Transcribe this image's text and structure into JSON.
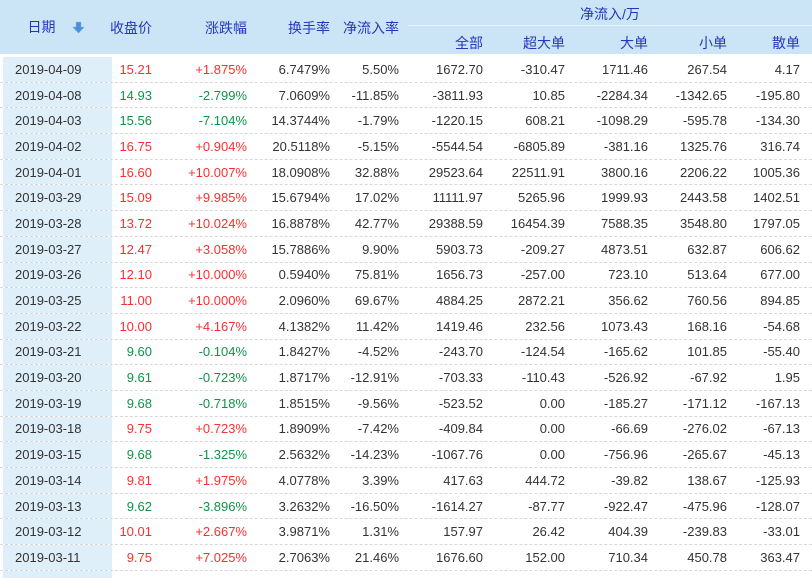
{
  "header": {
    "date_label": "日期",
    "sort_icon": "arrow-down-sort-descending",
    "close_label": "收盘价",
    "change_label": "涨跌幅",
    "turnover_label": "换手率",
    "inflow_rate_label": "净流入率",
    "inflow_group_label": "净流入/万",
    "sub_all": "全部",
    "sub_xlarge": "超大单",
    "sub_large": "大单",
    "sub_small": "小单",
    "sub_retail": "散单"
  },
  "colors": {
    "up": "#fb2f2f",
    "down": "#0f9447",
    "header_bg": "#cbe5f7",
    "header_text": "#2637bb",
    "date_col_bg": "#dfeffa",
    "row_divider": "#d8d8d8",
    "sort_arrow": "#4a90d9",
    "body_text": "#333333"
  },
  "rows": [
    {
      "date": "2019-04-09",
      "close": "15.21",
      "change": "+1.875%",
      "turnover": "6.7479%",
      "inflow_rate": "5.50%",
      "all": "1672.70",
      "xlarge": "-310.47",
      "large": "1711.46",
      "small": "267.54",
      "retail": "4.17",
      "trend": "up"
    },
    {
      "date": "2019-04-08",
      "close": "14.93",
      "change": "-2.799%",
      "turnover": "7.0609%",
      "inflow_rate": "-11.85%",
      "all": "-3811.93",
      "xlarge": "10.85",
      "large": "-2284.34",
      "small": "-1342.65",
      "retail": "-195.80",
      "trend": "down"
    },
    {
      "date": "2019-04-03",
      "close": "15.56",
      "change": "-7.104%",
      "turnover": "14.3744%",
      "inflow_rate": "-1.79%",
      "all": "-1220.15",
      "xlarge": "608.21",
      "large": "-1098.29",
      "small": "-595.78",
      "retail": "-134.30",
      "trend": "down"
    },
    {
      "date": "2019-04-02",
      "close": "16.75",
      "change": "+0.904%",
      "turnover": "20.5118%",
      "inflow_rate": "-5.15%",
      "all": "-5544.54",
      "xlarge": "-6805.89",
      "large": "-381.16",
      "small": "1325.76",
      "retail": "316.74",
      "trend": "up"
    },
    {
      "date": "2019-04-01",
      "close": "16.60",
      "change": "+10.007%",
      "turnover": "18.0908%",
      "inflow_rate": "32.88%",
      "all": "29523.64",
      "xlarge": "22511.91",
      "large": "3800.16",
      "small": "2206.22",
      "retail": "1005.36",
      "trend": "up"
    },
    {
      "date": "2019-03-29",
      "close": "15.09",
      "change": "+9.985%",
      "turnover": "15.6794%",
      "inflow_rate": "17.02%",
      "all": "11111.97",
      "xlarge": "5265.96",
      "large": "1999.93",
      "small": "2443.58",
      "retail": "1402.51",
      "trend": "up"
    },
    {
      "date": "2019-03-28",
      "close": "13.72",
      "change": "+10.024%",
      "turnover": "16.8878%",
      "inflow_rate": "42.77%",
      "all": "29388.59",
      "xlarge": "16454.39",
      "large": "7588.35",
      "small": "3548.80",
      "retail": "1797.05",
      "trend": "up"
    },
    {
      "date": "2019-03-27",
      "close": "12.47",
      "change": "+3.058%",
      "turnover": "15.7886%",
      "inflow_rate": "9.90%",
      "all": "5903.73",
      "xlarge": "-209.27",
      "large": "4873.51",
      "small": "632.87",
      "retail": "606.62",
      "trend": "up"
    },
    {
      "date": "2019-03-26",
      "close": "12.10",
      "change": "+10.000%",
      "turnover": "0.5940%",
      "inflow_rate": "75.81%",
      "all": "1656.73",
      "xlarge": "-257.00",
      "large": "723.10",
      "small": "513.64",
      "retail": "677.00",
      "trend": "up"
    },
    {
      "date": "2019-03-25",
      "close": "11.00",
      "change": "+10.000%",
      "turnover": "2.0960%",
      "inflow_rate": "69.67%",
      "all": "4884.25",
      "xlarge": "2872.21",
      "large": "356.62",
      "small": "760.56",
      "retail": "894.85",
      "trend": "up"
    },
    {
      "date": "2019-03-22",
      "close": "10.00",
      "change": "+4.167%",
      "turnover": "4.1382%",
      "inflow_rate": "11.42%",
      "all": "1419.46",
      "xlarge": "232.56",
      "large": "1073.43",
      "small": "168.16",
      "retail": "-54.68",
      "trend": "up"
    },
    {
      "date": "2019-03-21",
      "close": "9.60",
      "change": "-0.104%",
      "turnover": "1.8427%",
      "inflow_rate": "-4.52%",
      "all": "-243.70",
      "xlarge": "-124.54",
      "large": "-165.62",
      "small": "101.85",
      "retail": "-55.40",
      "trend": "down"
    },
    {
      "date": "2019-03-20",
      "close": "9.61",
      "change": "-0.723%",
      "turnover": "1.8717%",
      "inflow_rate": "-12.91%",
      "all": "-703.33",
      "xlarge": "-110.43",
      "large": "-526.92",
      "small": "-67.92",
      "retail": "1.95",
      "trend": "down"
    },
    {
      "date": "2019-03-19",
      "close": "9.68",
      "change": "-0.718%",
      "turnover": "1.8515%",
      "inflow_rate": "-9.56%",
      "all": "-523.52",
      "xlarge": "0.00",
      "large": "-185.27",
      "small": "-171.12",
      "retail": "-167.13",
      "trend": "down"
    },
    {
      "date": "2019-03-18",
      "close": "9.75",
      "change": "+0.723%",
      "turnover": "1.8909%",
      "inflow_rate": "-7.42%",
      "all": "-409.84",
      "xlarge": "0.00",
      "large": "-66.69",
      "small": "-276.02",
      "retail": "-67.13",
      "trend": "up"
    },
    {
      "date": "2019-03-15",
      "close": "9.68",
      "change": "-1.325%",
      "turnover": "2.5632%",
      "inflow_rate": "-14.23%",
      "all": "-1067.76",
      "xlarge": "0.00",
      "large": "-756.96",
      "small": "-265.67",
      "retail": "-45.13",
      "trend": "down"
    },
    {
      "date": "2019-03-14",
      "close": "9.81",
      "change": "+1.975%",
      "turnover": "4.0778%",
      "inflow_rate": "3.39%",
      "all": "417.63",
      "xlarge": "444.72",
      "large": "-39.82",
      "small": "138.67",
      "retail": "-125.93",
      "trend": "up"
    },
    {
      "date": "2019-03-13",
      "close": "9.62",
      "change": "-3.896%",
      "turnover": "3.2632%",
      "inflow_rate": "-16.50%",
      "all": "-1614.27",
      "xlarge": "-87.77",
      "large": "-922.47",
      "small": "-475.96",
      "retail": "-128.07",
      "trend": "down"
    },
    {
      "date": "2019-03-12",
      "close": "10.01",
      "change": "+2.667%",
      "turnover": "3.9871%",
      "inflow_rate": "1.31%",
      "all": "157.97",
      "xlarge": "26.42",
      "large": "404.39",
      "small": "-239.83",
      "retail": "-33.01",
      "trend": "up"
    },
    {
      "date": "2019-03-11",
      "close": "9.75",
      "change": "+7.025%",
      "turnover": "2.7063%",
      "inflow_rate": "21.46%",
      "all": "1676.60",
      "xlarge": "152.00",
      "large": "710.34",
      "small": "450.78",
      "retail": "363.47",
      "trend": "up"
    }
  ]
}
